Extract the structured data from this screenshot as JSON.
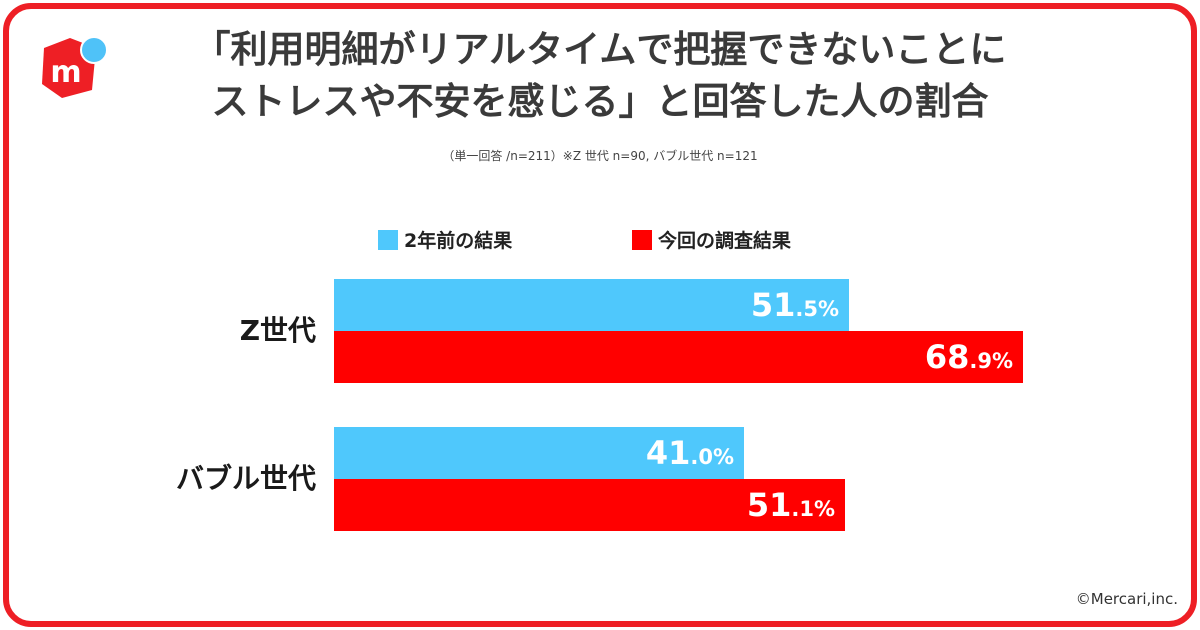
{
  "brand": {
    "accent": "#ee1f25",
    "dot": "#4fc2f8"
  },
  "header": {
    "title_line1": "「利用明細がリアルタイムで把握できないことに",
    "title_line2": "ストレスや不安を感じる」と回答した人の割合",
    "subtitle": "（単一回答 /n=211）※Z 世代 n=90, バブル世代 n=121"
  },
  "footer": {
    "copyright": "©Mercari,inc."
  },
  "chart_data": {
    "type": "bar",
    "orientation": "horizontal",
    "categories": [
      "Z世代",
      "バブル世代"
    ],
    "series": [
      {
        "name": "2年前の結果",
        "color": "#4fc8fc",
        "values": [
          51.5,
          41.0
        ]
      },
      {
        "name": "今回の調査結果",
        "color": "#ff0000",
        "values": [
          68.9,
          51.1
        ]
      }
    ],
    "value_unit": "%",
    "xlim": [
      0,
      100
    ],
    "legend": "top",
    "grid": false
  }
}
